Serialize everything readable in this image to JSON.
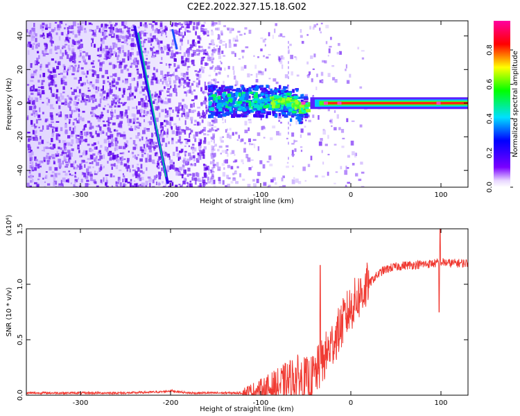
{
  "figure_title": "C2E2.2022.327.15.18.G02",
  "chart_data": [
    {
      "type": "heatmap",
      "title": "C2E2.2022.327.15.18.G02",
      "xlabel": "Height of straight line (km)",
      "ylabel": "Frequency (Hz)",
      "xlim": [
        -360,
        130
      ],
      "ylim": [
        -50,
        49
      ],
      "x_ticks": [
        -300,
        -200,
        -100,
        0,
        100
      ],
      "y_ticks": [
        -40,
        -20,
        0,
        20,
        40
      ],
      "colorbar": {
        "label": "Normalized spectral amplitude",
        "range": [
          0.0,
          0.97
        ],
        "ticks": [
          0.0,
          0.2,
          0.4,
          0.6,
          0.8
        ],
        "colormap": "rainbow (violet-blue-cyan-green-yellow-red-magenta)"
      },
      "features": [
        {
          "name": "diagonal streak",
          "x_from": -240,
          "y_from": 46,
          "x_to": -203,
          "y_to": -48
        },
        {
          "name": "carrier line",
          "x_from": -160,
          "x_to": 130,
          "frequency": 0
        }
      ]
    },
    {
      "type": "line",
      "xlabel": "Height of straight line (km)",
      "ylabel": "SNR (10 * v/v)",
      "y_scale_note": "(x10⁴)",
      "xlim": [
        -360,
        130
      ],
      "ylim": [
        0.0,
        1.5
      ],
      "x_ticks": [
        -300,
        -200,
        -100,
        0,
        100
      ],
      "y_ticks": [
        "0.0",
        "0.5",
        "1.0",
        "1.5"
      ],
      "color": "#f03a32",
      "series": [
        {
          "x": [
            -360,
            -300,
            -250,
            -210,
            -200,
            -180,
            -120,
            -100,
            -80,
            -60,
            -45,
            -35,
            -25,
            -15,
            -5,
            5,
            15,
            25,
            35,
            45,
            60,
            80,
            95,
            100,
            110,
            130
          ],
          "y": [
            0.02,
            0.02,
            0.02,
            0.03,
            0.04,
            0.02,
            0.02,
            0.04,
            0.08,
            0.15,
            0.12,
            0.25,
            0.4,
            0.55,
            0.72,
            0.85,
            0.95,
            1.05,
            1.12,
            1.15,
            1.17,
            1.18,
            1.19,
            1.2,
            1.19,
            1.19
          ]
        }
      ]
    }
  ]
}
